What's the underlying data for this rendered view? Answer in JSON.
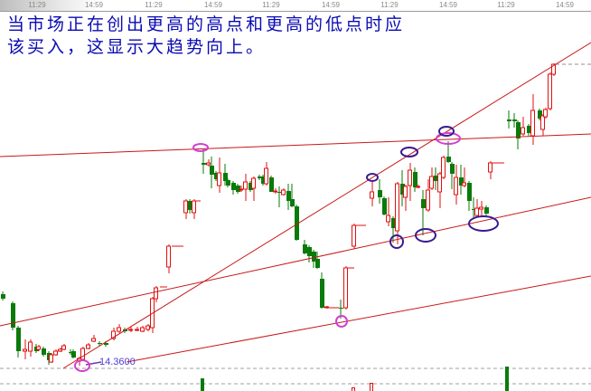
{
  "caption": {
    "line1": "当市场正在创出更高的高点和更高的低点时应",
    "line2": "该买入，这显示大趋势向上。"
  },
  "colors": {
    "up": "#e01010",
    "down": "#0a7a0a",
    "trendline": "#c81818",
    "caption": "#0a0ab4",
    "highlight_circle": "#d040d0",
    "swing_circle": "#3a1a90"
  },
  "chart_data": {
    "type": "candlestick",
    "title": "",
    "x_tick_labels": [
      "11:29",
      "14:59",
      "11:29",
      "14:59",
      "11:29",
      "14:59",
      "11:29",
      "14:59",
      "11:29",
      "14:59"
    ],
    "annotations": {
      "low_price_label": "14.3600"
    },
    "grid": false,
    "candles_ohlc": [
      [
        15.15,
        15.18,
        15.08,
        15.1
      ],
      [
        15.05,
        15.07,
        14.75,
        14.78
      ],
      [
        14.78,
        14.8,
        14.45,
        14.52
      ],
      [
        14.52,
        14.65,
        14.43,
        14.54
      ],
      [
        14.52,
        14.65,
        14.46,
        14.62
      ],
      [
        14.57,
        14.6,
        14.5,
        14.52
      ],
      [
        14.54,
        14.59,
        14.52,
        14.57
      ],
      [
        14.55,
        14.57,
        14.46,
        14.48
      ],
      [
        14.5,
        14.52,
        14.37,
        14.42
      ],
      [
        14.4,
        14.5,
        14.39,
        14.48
      ],
      [
        14.48,
        14.54,
        14.47,
        14.52
      ],
      [
        14.52,
        14.56,
        14.51,
        14.54
      ],
      [
        14.54,
        14.6,
        14.53,
        14.58
      ],
      [
        14.51,
        14.54,
        14.48,
        14.5
      ],
      [
        14.52,
        14.54,
        14.44,
        14.45
      ],
      [
        14.41,
        14.46,
        14.36,
        14.44
      ],
      [
        14.43,
        14.57,
        14.42,
        14.55
      ],
      [
        14.55,
        14.61,
        14.54,
        14.59
      ],
      [
        14.63,
        14.7,
        14.62,
        14.66
      ],
      [
        14.61,
        14.63,
        14.58,
        14.6
      ],
      [
        14.61,
        14.63,
        14.57,
        14.59
      ],
      [
        14.66,
        14.78,
        14.64,
        14.74
      ],
      [
        14.74,
        14.82,
        14.72,
        14.78
      ],
      [
        14.76,
        14.78,
        14.72,
        14.74
      ],
      [
        14.75,
        14.79,
        14.73,
        14.76
      ],
      [
        14.75,
        14.79,
        14.74,
        14.76
      ],
      [
        14.74,
        14.8,
        14.73,
        14.78
      ],
      [
        14.76,
        14.82,
        14.74,
        14.8
      ],
      [
        14.78,
        15.12,
        14.72,
        15.1
      ],
      [
        15.1,
        15.24,
        15.06,
        15.22
      ],
      [
        15.45,
        15.7,
        15.38,
        15.68
      ],
      [
        16.05,
        16.2,
        15.98,
        16.18
      ],
      [
        16.18,
        16.2,
        16.04,
        16.08
      ],
      [
        16.05,
        16.2,
        15.98,
        16.18
      ],
      [
        16.6,
        16.75,
        16.48,
        16.58
      ],
      [
        16.58,
        16.64,
        16.56,
        16.6
      ],
      [
        16.57,
        16.67,
        16.32,
        16.47
      ],
      [
        16.49,
        16.51,
        16.4,
        16.42
      ],
      [
        16.35,
        16.66,
        16.27,
        16.49
      ],
      [
        16.49,
        16.59,
        16.35,
        16.4
      ],
      [
        16.41,
        16.43,
        16.33,
        16.35
      ],
      [
        16.38,
        16.4,
        16.25,
        16.3
      ],
      [
        16.35,
        16.37,
        16.26,
        16.28
      ],
      [
        16.3,
        16.35,
        16.28,
        16.31
      ],
      [
        16.31,
        16.48,
        16.18,
        16.39
      ],
      [
        16.38,
        16.4,
        16.28,
        16.3
      ],
      [
        16.32,
        16.45,
        16.18,
        16.43
      ],
      [
        16.45,
        16.47,
        16.41,
        16.43
      ],
      [
        16.45,
        16.47,
        16.35,
        16.37
      ],
      [
        16.37,
        16.61,
        16.35,
        16.54
      ],
      [
        16.44,
        16.46,
        16.28,
        16.28
      ],
      [
        16.28,
        16.32,
        16.26,
        16.29
      ],
      [
        16.28,
        16.34,
        16.11,
        16.27
      ],
      [
        16.25,
        16.32,
        16.24,
        16.3
      ],
      [
        16.29,
        16.37,
        16.08,
        16.18
      ],
      [
        16.2,
        16.37,
        16.11,
        16.12
      ],
      [
        16.12,
        16.14,
        15.74,
        15.75
      ],
      [
        15.7,
        15.75,
        15.59,
        15.6
      ],
      [
        15.67,
        15.69,
        15.5,
        15.57
      ],
      [
        15.62,
        15.64,
        15.44,
        15.51
      ],
      [
        15.54,
        15.62,
        15.43,
        15.44
      ],
      [
        15.32,
        15.39,
        14.99,
        15.0
      ],
      [
        15.0,
        15.02,
        14.99,
        15.01
      ],
      [
        15.0,
        15.09,
        14.88,
        14.99
      ],
      [
        15.0,
        15.46,
        14.98,
        15.44
      ],
      [
        15.68,
        15.93,
        15.65,
        15.91
      ],
      [
        16.21,
        16.4,
        16.12,
        16.28
      ],
      [
        16.3,
        16.42,
        16.15,
        16.22
      ],
      [
        16.21,
        16.23,
        16.02,
        16.03
      ],
      [
        15.95,
        16.22,
        15.9,
        16.02
      ],
      [
        15.99,
        16.01,
        15.72,
        15.88
      ],
      [
        15.85,
        16.39,
        15.7,
        16.37
      ],
      [
        16.37,
        16.52,
        16.12,
        16.25
      ],
      [
        16.22,
        16.36,
        16.07,
        16.34
      ],
      [
        16.35,
        16.6,
        16.18,
        16.52
      ],
      [
        16.5,
        16.55,
        16.28,
        16.33
      ],
      [
        16.33,
        16.36,
        16.32,
        16.34
      ],
      [
        16.2,
        16.3,
        15.8,
        16.1
      ],
      [
        16.08,
        16.42,
        16.06,
        16.3
      ],
      [
        16.32,
        16.55,
        16.3,
        16.45
      ],
      [
        16.46,
        16.55,
        16.3,
        16.4
      ],
      [
        16.28,
        16.5,
        16.1,
        16.48
      ],
      [
        16.44,
        16.68,
        16.42,
        16.66
      ],
      [
        16.67,
        16.84,
        16.6,
        16.61
      ],
      [
        16.59,
        16.61,
        16.31,
        16.48
      ],
      [
        16.25,
        16.58,
        16.14,
        16.44
      ],
      [
        16.44,
        16.58,
        16.25,
        16.35
      ],
      [
        16.35,
        16.55,
        16.33,
        16.38
      ],
      [
        16.38,
        16.4,
        16.07,
        16.18
      ],
      [
        16.09,
        16.22,
        16.0,
        16.08
      ],
      [
        16.02,
        16.2,
        16.0,
        16.1
      ],
      [
        16.09,
        16.18,
        16.02,
        16.11
      ],
      [
        16.11,
        16.13,
        16.02,
        16.04
      ],
      [
        16.5,
        16.62,
        16.42,
        16.6
      ],
      [
        17.08,
        17.18,
        16.98,
        17.06
      ],
      [
        17.08,
        17.15,
        16.99,
        17.06
      ],
      [
        17.05,
        17.07,
        16.75,
        16.87
      ],
      [
        16.92,
        17.11,
        16.9,
        16.99
      ],
      [
        17.01,
        17.03,
        16.9,
        16.93
      ],
      [
        16.9,
        17.36,
        16.8,
        17.18
      ],
      [
        17.18,
        17.2,
        17.07,
        17.09
      ],
      [
        16.97,
        17.14,
        16.9,
        17.12
      ],
      [
        17.11,
        17.21,
        17.09,
        17.19
      ],
      [
        17.2,
        17.6,
        17.18,
        17.58
      ],
      [
        17.58,
        17.7,
        17.56,
        17.69
      ]
    ]
  }
}
